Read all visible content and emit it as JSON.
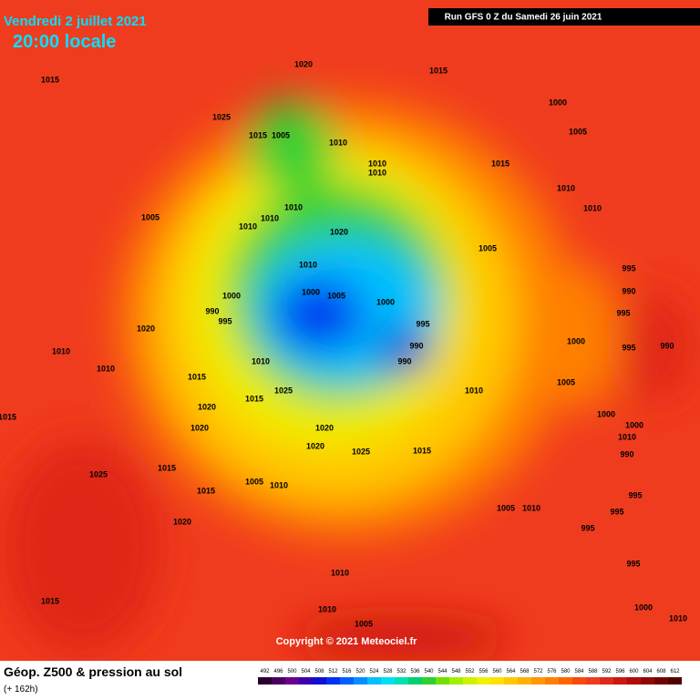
{
  "header": {
    "date": "Vendredi 2 juillet 2021",
    "time": "20:00 locale",
    "run": "Run GFS 0 Z du Samedi 26 juin 2021"
  },
  "copyright": "Copyright © 2021 Meteociel.fr",
  "footer": {
    "title": "Géop. Z500 & pression au sol",
    "lead": "(+ 162h)"
  },
  "isobar_labels": [
    1015,
    1020,
    1015,
    1025,
    1015,
    1005,
    1010,
    1000,
    1005,
    1015,
    1010,
    1010,
    1010,
    1010,
    1005,
    1010,
    1010,
    1020,
    1010,
    1005,
    995,
    1010,
    990,
    1000,
    1005,
    1000,
    1000,
    995,
    990,
    995,
    995,
    1020,
    990,
    1000,
    995,
    990,
    1010,
    1010,
    990,
    1010,
    1005,
    1015,
    1025,
    1015,
    1010,
    1020,
    1000,
    1015,
    1020,
    1020,
    1000,
    1010,
    990,
    1020,
    1025,
    1015,
    1025,
    1015,
    1005,
    1010,
    1015,
    995,
    1005,
    1010,
    995,
    1020,
    995,
    995,
    1010,
    1015,
    1010,
    1000,
    1005,
    1010
  ],
  "colorbar": {
    "ticks": [
      492,
      496,
      500,
      504,
      508,
      512,
      516,
      520,
      524,
      528,
      532,
      536,
      540,
      544,
      548,
      552,
      556,
      560,
      564,
      568,
      572,
      576,
      580,
      584,
      588,
      592,
      596,
      600,
      604,
      608,
      612
    ],
    "colors": [
      "#2a0030",
      "#4a0060",
      "#6a0090",
      "#3a00b0",
      "#1010d0",
      "#0030f0",
      "#0060ff",
      "#0090ff",
      "#00c0ff",
      "#00e0f0",
      "#00e0b0",
      "#00d070",
      "#30d030",
      "#70e000",
      "#a0f000",
      "#d0f000",
      "#f0f000",
      "#ffe000",
      "#ffc800",
      "#ffb000",
      "#ff9800",
      "#ff8000",
      "#ff6400",
      "#f84a10",
      "#f03c1e",
      "#e02818",
      "#c81810",
      "#b00c0c",
      "#900808",
      "#700404",
      "#500000"
    ]
  }
}
